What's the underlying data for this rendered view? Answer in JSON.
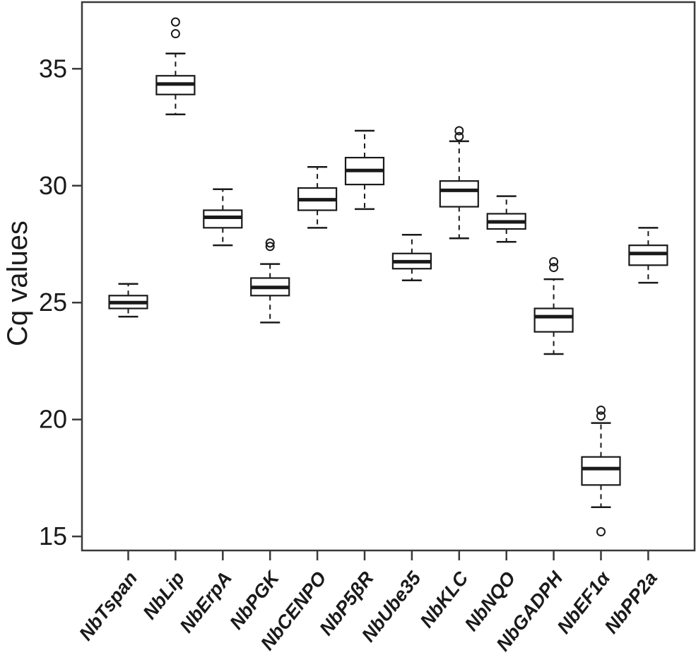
{
  "figure": {
    "background": "#ffffff"
  },
  "chart_data": {
    "type": "boxplot",
    "title": "",
    "xlabel": "",
    "ylabel": "Cq values",
    "ylim": [
      14.4,
      37.85
    ],
    "yticks": [
      15,
      20,
      25,
      30,
      35
    ],
    "grid": false,
    "frame": true,
    "legend": null,
    "categories": [
      "NbTspan",
      "NbLip",
      "NbErpA",
      "NbPGK",
      "NbCENPO",
      "NbP5βR",
      "NbUbe35",
      "NbKLC",
      "NbNQO",
      "NbGADPH",
      "NbEF1α",
      "NbPP2a"
    ],
    "boxes": [
      {
        "category": "NbTspan",
        "whisker_low": 24.4,
        "q1": 24.75,
        "median": 25.0,
        "q3": 25.3,
        "whisker_high": 25.8,
        "outliers": []
      },
      {
        "category": "NbLip",
        "whisker_low": 33.05,
        "q1": 33.9,
        "median": 34.35,
        "q3": 34.7,
        "whisker_high": 35.65,
        "outliers": [
          36.5,
          37.0
        ]
      },
      {
        "category": "NbErpA",
        "whisker_low": 27.45,
        "q1": 28.2,
        "median": 28.65,
        "q3": 28.95,
        "whisker_high": 29.85,
        "outliers": []
      },
      {
        "category": "NbPGK",
        "whisker_low": 24.15,
        "q1": 25.3,
        "median": 25.65,
        "q3": 26.05,
        "whisker_high": 26.65,
        "outliers": [
          27.4,
          27.55
        ]
      },
      {
        "category": "NbCENPO",
        "whisker_low": 28.2,
        "q1": 28.95,
        "median": 29.4,
        "q3": 29.9,
        "whisker_high": 30.8,
        "outliers": []
      },
      {
        "category": "NbP5βR",
        "whisker_low": 29.0,
        "q1": 30.05,
        "median": 30.65,
        "q3": 31.2,
        "whisker_high": 32.35,
        "outliers": []
      },
      {
        "category": "NbUbe35",
        "whisker_low": 25.95,
        "q1": 26.45,
        "median": 26.75,
        "q3": 27.1,
        "whisker_high": 27.9,
        "outliers": []
      },
      {
        "category": "NbKLC",
        "whisker_low": 27.75,
        "q1": 29.1,
        "median": 29.8,
        "q3": 30.2,
        "whisker_high": 31.9,
        "outliers": [
          32.1,
          32.35
        ]
      },
      {
        "category": "NbNQO",
        "whisker_low": 27.6,
        "q1": 28.15,
        "median": 28.45,
        "q3": 28.8,
        "whisker_high": 29.55,
        "outliers": []
      },
      {
        "category": "NbGADPH",
        "whisker_low": 22.8,
        "q1": 23.75,
        "median": 24.4,
        "q3": 24.75,
        "whisker_high": 26.0,
        "outliers": [
          26.5,
          26.75
        ]
      },
      {
        "category": "NbEF1α",
        "whisker_low": 16.25,
        "q1": 17.2,
        "median": 17.9,
        "q3": 18.4,
        "whisker_high": 19.85,
        "outliers": [
          15.2,
          20.15,
          20.4
        ]
      },
      {
        "category": "NbPP2a",
        "whisker_low": 25.85,
        "q1": 26.6,
        "median": 27.1,
        "q3": 27.45,
        "whisker_high": 28.2,
        "outliers": []
      }
    ],
    "colors": {
      "line": "#1a1a1a",
      "box_fill": "#ffffff",
      "frame": "#3a3a3a",
      "background": "#ffffff"
    }
  }
}
